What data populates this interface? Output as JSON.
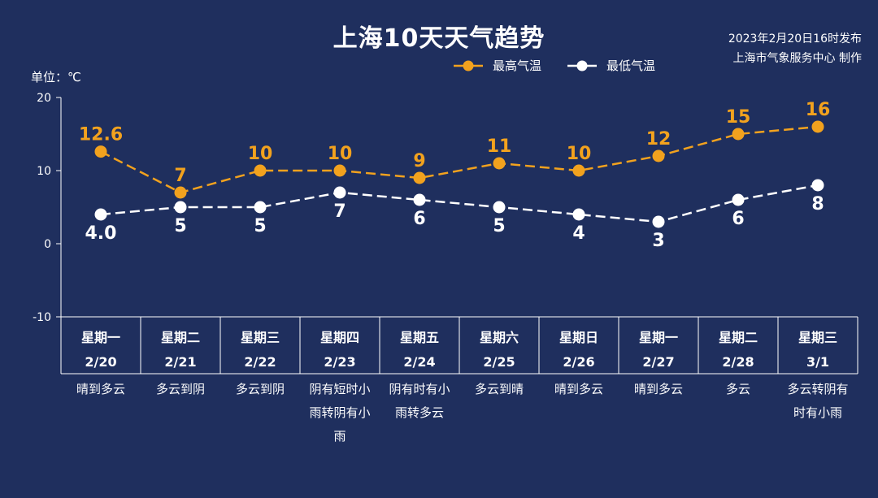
{
  "title": "上海10天天气趋势",
  "publish": {
    "line1": "2023年2月20日16时发布",
    "line2": "上海市气象服务中心 制作"
  },
  "colors": {
    "background": "#1f2f5e",
    "high": "#f2a21e",
    "low": "#ffffff"
  },
  "chart_data": {
    "type": "line",
    "ylabel": "单位：℃",
    "ylim": [
      -10,
      20
    ],
    "yticks": [
      "20",
      "10",
      "0",
      "-10"
    ],
    "ytick_values": [
      20,
      10,
      0,
      -10
    ],
    "legend": [
      "最高气温",
      "最低气温"
    ],
    "legend_position": "top-right",
    "grid": false,
    "series": [
      {
        "name": "最高气温",
        "values": [
          12.6,
          7,
          10,
          10,
          9,
          11,
          10,
          12,
          15,
          16
        ],
        "labels": [
          "12.6",
          "7",
          "10",
          "10",
          "9",
          "11",
          "10",
          "12",
          "15",
          "16"
        ],
        "color": "#f2a21e",
        "style": "dashed"
      },
      {
        "name": "最低气温",
        "values": [
          4.0,
          5,
          5,
          7,
          6,
          5,
          4,
          3,
          6,
          8
        ],
        "labels": [
          "4.0",
          "5",
          "5",
          "7",
          "6",
          "5",
          "4",
          "3",
          "6",
          "8"
        ],
        "color": "#ffffff",
        "style": "dashed"
      }
    ],
    "days": [
      {
        "weekday": "星期一",
        "date": "2/20",
        "weather": [
          "晴到多云"
        ]
      },
      {
        "weekday": "星期二",
        "date": "2/21",
        "weather": [
          "多云到阴"
        ]
      },
      {
        "weekday": "星期三",
        "date": "2/22",
        "weather": [
          "多云到阴"
        ]
      },
      {
        "weekday": "星期四",
        "date": "2/23",
        "weather": [
          "阴有短时小",
          "雨转阴有小",
          "雨"
        ]
      },
      {
        "weekday": "星期五",
        "date": "2/24",
        "weather": [
          "阴有时有小",
          "雨转多云"
        ]
      },
      {
        "weekday": "星期六",
        "date": "2/25",
        "weather": [
          "多云到晴"
        ]
      },
      {
        "weekday": "星期日",
        "date": "2/26",
        "weather": [
          "晴到多云"
        ]
      },
      {
        "weekday": "星期一",
        "date": "2/27",
        "weather": [
          "晴到多云"
        ]
      },
      {
        "weekday": "星期二",
        "date": "2/28",
        "weather": [
          "多云"
        ]
      },
      {
        "weekday": "星期三",
        "date": "3/1",
        "weather": [
          "多云转阴有",
          "时有小雨"
        ]
      }
    ]
  }
}
